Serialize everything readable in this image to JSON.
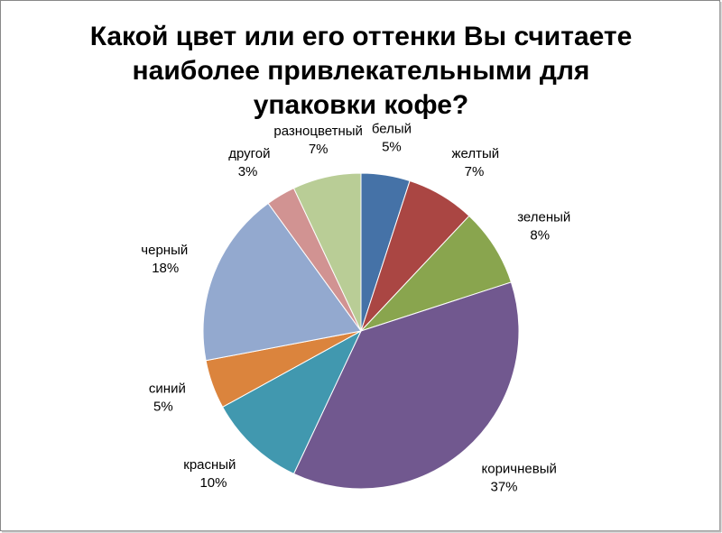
{
  "chart_data": {
    "type": "pie",
    "title": [
      "Какой цвет или его оттенки Вы считаете",
      "наиболее привлекательными для",
      "упаковки кофе?"
    ],
    "categories": [
      "белый",
      "желтый",
      "зеленый",
      "коричневый",
      "красный",
      "синий",
      "черный",
      "другой",
      "разноцветный"
    ],
    "values": [
      5,
      7,
      8,
      37,
      10,
      5,
      18,
      3,
      7
    ],
    "value_labels": [
      "5%",
      "7%",
      "8%",
      "37%",
      "10%",
      "5%",
      "18%",
      "3%",
      "7%"
    ],
    "colors": [
      "#4572a7",
      "#aa4643",
      "#89a54e",
      "#71588f",
      "#4198af",
      "#db843d",
      "#93a9cf",
      "#d19392",
      "#b9cd96"
    ]
  }
}
